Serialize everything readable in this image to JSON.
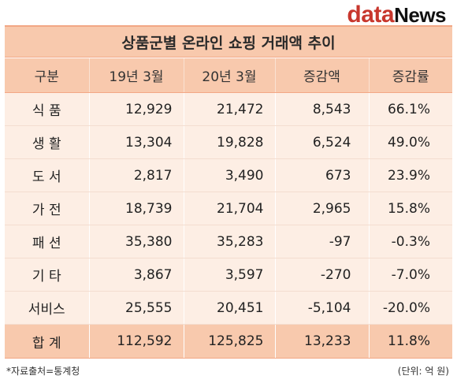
{
  "brand": {
    "part1": "data",
    "part2": "News"
  },
  "title": "상품군별 온라인 쇼핑 거래액 추이",
  "columns": [
    "구분",
    "19년 3월",
    "20년 3월",
    "증감액",
    "증감률"
  ],
  "rows": [
    [
      "식 품",
      "12,929",
      "21,472",
      "8,543",
      "66.1%"
    ],
    [
      "생 활",
      "13,304",
      "19,828",
      "6,524",
      "49.0%"
    ],
    [
      "도 서",
      "2,817",
      "3,490",
      "673",
      "23.9%"
    ],
    [
      "가 전",
      "18,739",
      "21,704",
      "2,965",
      "15.8%"
    ],
    [
      "패 션",
      "35,380",
      "35,283",
      "-97",
      "-0.3%"
    ],
    [
      "기 타",
      "3,867",
      "3,597",
      "-270",
      "-7.0%"
    ],
    [
      "서비스",
      "25,555",
      "20,451",
      "-5,104",
      "-20.0%"
    ]
  ],
  "total": [
    "합 계",
    "112,592",
    "125,825",
    "13,233",
    "11.8%"
  ],
  "source": "*자료출처=통계청",
  "unit": "(단위: 억 원)"
}
